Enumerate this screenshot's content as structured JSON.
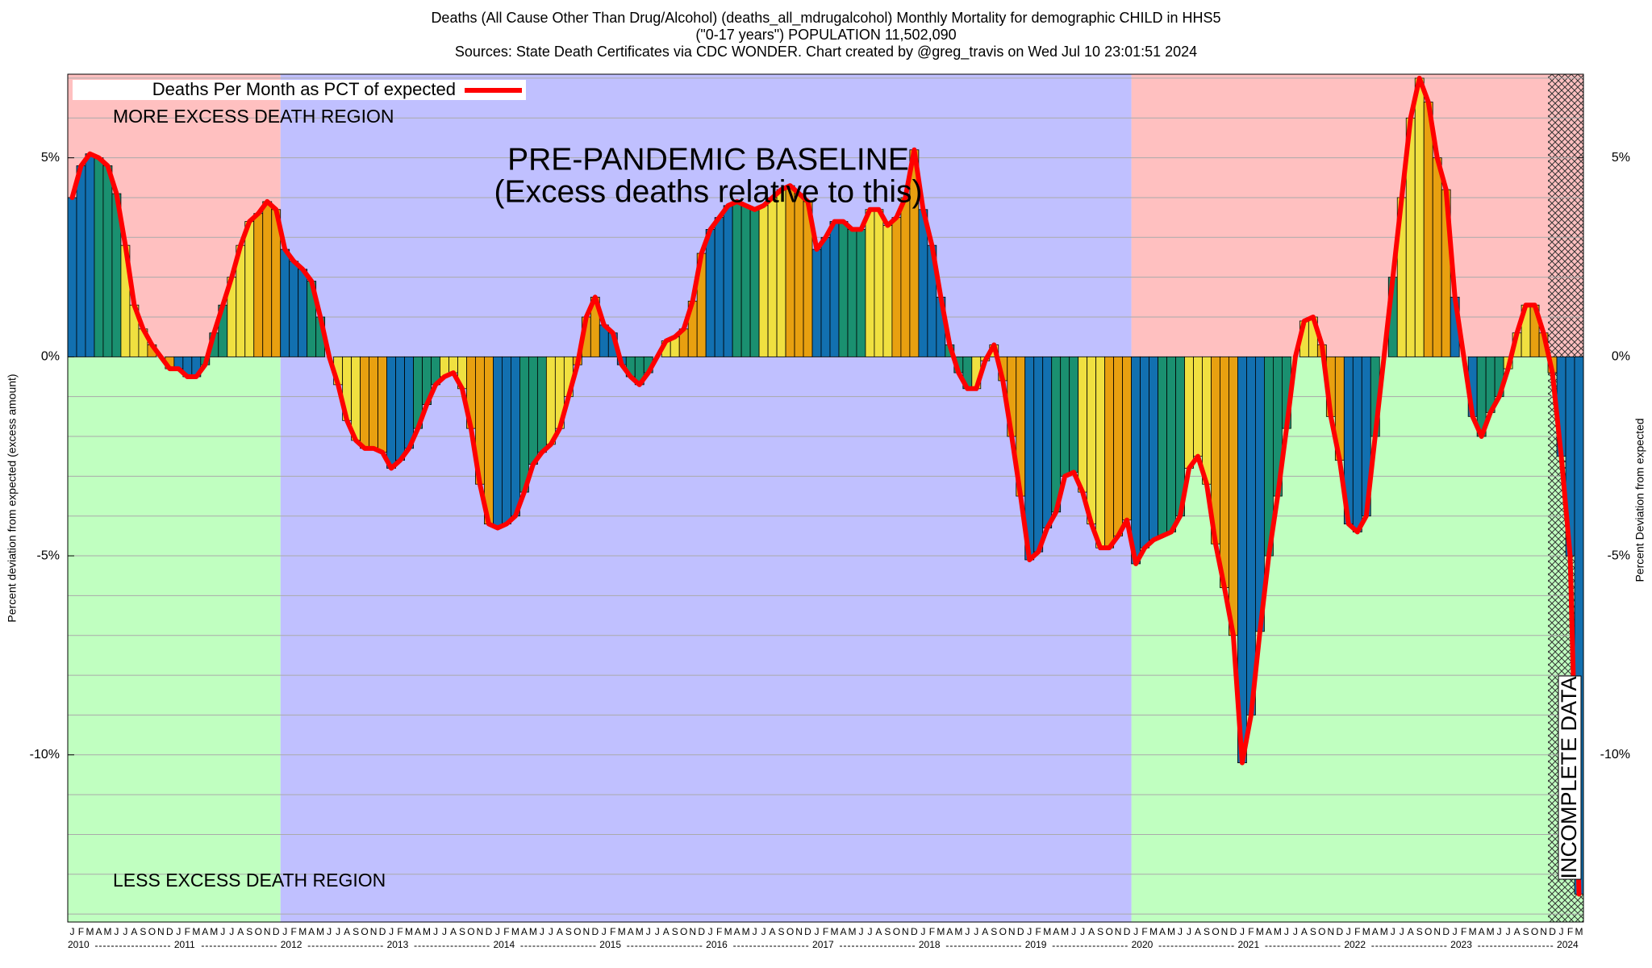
{
  "chart_data": {
    "type": "bar",
    "title_lines": [
      "Deaths (All Cause Other Than Drug/Alcohol) (deaths_all_mdrugalcohol) Monthly Mortality for demographic CHILD in HHS5",
      "(\"0-17 years\") POPULATION 11,502,090",
      "Sources: State Death Certificates via CDC WONDER.              Chart created by @greg_travis on Wed Jul 10 23:01:51 2024"
    ],
    "y_label": "Percent deviation from expected (excess amount)",
    "y2_label": "Percent Deviation from expected",
    "annotations": {
      "more": "MORE EXCESS DEATH REGION",
      "less": "LESS EXCESS DEATH REGION",
      "baseline": "PRE-PANDEMIC BASELINE",
      "baseline_note": "(Excess deaths relative to this)",
      "incomplete": "INCOMPLETE DATA"
    },
    "x_start": "2010-01",
    "month_labels": [
      "J",
      "F",
      "M",
      "A",
      "M",
      "J",
      "J",
      "A",
      "S",
      "O",
      "N",
      "D"
    ],
    "years": [
      "2010",
      "2011",
      "2012",
      "2013",
      "2014",
      "2015",
      "2016",
      "2017",
      "2018",
      "2019",
      "2020",
      "2021",
      "2022",
      "2023",
      "2024"
    ],
    "baseline": {
      "from": "2012-01",
      "to": "2019-12",
      "color": "#c0c0ff"
    },
    "incomplete_from": "2023-12",
    "excess_color": "#ffc0c0",
    "deficit_color": "#c0ffc0",
    "bar_colors": [
      "#1270b0",
      "#1a9070",
      "#f0e040",
      "#e8a010"
    ],
    "series": [
      {
        "name": "Deaths Per Month as PCT of expected",
        "color": "#ff0000",
        "values": [
          4.0,
          4.8,
          5.1,
          5.0,
          4.8,
          4.1,
          2.8,
          1.3,
          0.7,
          0.3,
          0.0,
          -0.3,
          -0.3,
          -0.5,
          -0.5,
          -0.2,
          0.6,
          1.3,
          2.0,
          2.8,
          3.4,
          3.6,
          3.9,
          3.7,
          2.7,
          2.4,
          2.2,
          1.9,
          1.0,
          0.0,
          -0.7,
          -1.6,
          -2.1,
          -2.3,
          -2.3,
          -2.4,
          -2.8,
          -2.6,
          -2.3,
          -1.8,
          -1.2,
          -0.7,
          -0.5,
          -0.4,
          -0.8,
          -1.8,
          -3.2,
          -4.2,
          -4.3,
          -4.2,
          -4.0,
          -3.4,
          -2.7,
          -2.4,
          -2.2,
          -1.8,
          -1.0,
          -0.2,
          1.0,
          1.5,
          0.8,
          0.6,
          -0.2,
          -0.5,
          -0.7,
          -0.4,
          0.0,
          0.4,
          0.5,
          0.7,
          1.4,
          2.6,
          3.2,
          3.5,
          3.8,
          3.9,
          3.8,
          3.7,
          3.8,
          4.0,
          4.2,
          4.3,
          4.1,
          3.9,
          2.7,
          3.0,
          3.4,
          3.4,
          3.2,
          3.2,
          3.7,
          3.7,
          3.3,
          3.5,
          4.0,
          5.2,
          3.7,
          2.8,
          1.5,
          0.3,
          -0.4,
          -0.8,
          -0.8,
          -0.1,
          0.3,
          -0.6,
          -2.0,
          -3.5,
          -5.1,
          -4.9,
          -4.3,
          -3.9,
          -3.0,
          -2.9,
          -3.4,
          -4.2,
          -4.8,
          -4.8,
          -4.5,
          -4.1,
          -5.2,
          -4.8,
          -4.6,
          -4.5,
          -4.4,
          -4.0,
          -2.8,
          -2.5,
          -3.2,
          -4.7,
          -5.8,
          -7.0,
          -10.2,
          -9.0,
          -6.9,
          -5.0,
          -3.5,
          -1.8,
          0.0,
          0.9,
          1.0,
          0.3,
          -1.5,
          -2.6,
          -4.2,
          -4.4,
          -4.0,
          -2.0,
          0.0,
          2.0,
          4.0,
          6.0,
          7.0,
          6.4,
          5.0,
          4.2,
          1.5,
          0.0,
          -1.5,
          -2.0,
          -1.4,
          -1.0,
          -0.3,
          0.6,
          1.3,
          1.3,
          0.6,
          -0.4,
          -2.5,
          -5.0,
          -13.5
        ]
      }
    ],
    "ylim": [
      -14.2,
      7.1
    ],
    "yticks": [
      {
        "value": 5,
        "label": "5%"
      },
      {
        "value": 0,
        "label": "0%"
      },
      {
        "value": -5,
        "label": "-5%"
      },
      {
        "value": -10,
        "label": "-10%"
      }
    ],
    "minor_yticks": [
      -14,
      -13,
      -12,
      -11,
      -10,
      -9,
      -8,
      -7,
      -6,
      -5,
      -4,
      -3,
      -2,
      -1,
      0,
      1,
      2,
      3,
      4,
      5,
      6,
      7
    ],
    "grid": true
  }
}
